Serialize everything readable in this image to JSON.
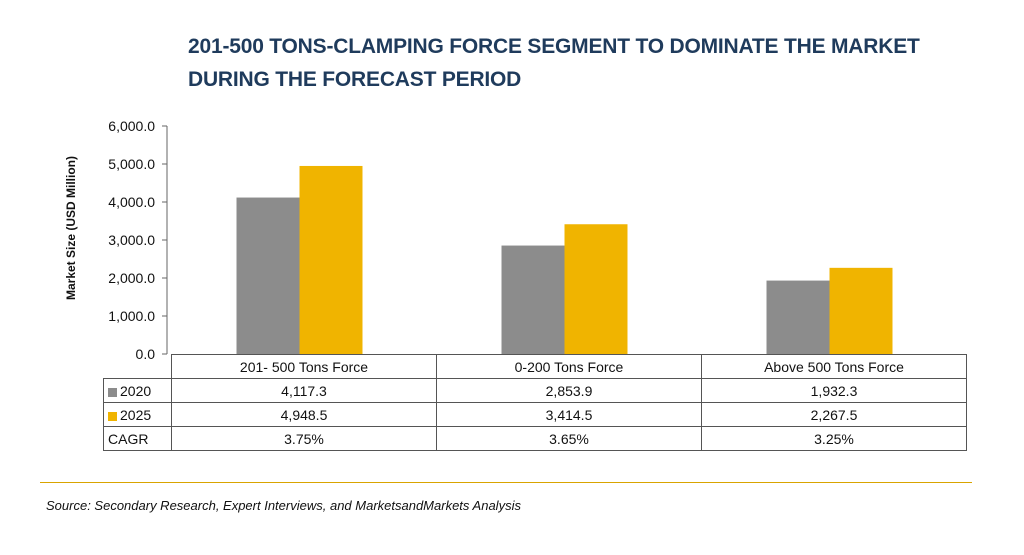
{
  "title_lines": [
    "201-500 TONS-CLAMPING FORCE SEGMENT TO DOMINATE THE MARKET",
    "DURING THE FORECAST PERIOD"
  ],
  "source": "Source: Secondary Research, Expert Interviews, and MarketsandMarkets Analysis",
  "colors": {
    "2020": "#8c8c8c",
    "2025": "#f0b400",
    "title": "#1f3b5c",
    "rule": "#d9a400"
  },
  "chart_data": {
    "type": "bar",
    "title": "201-500 TONS-CLAMPING FORCE SEGMENT TO DOMINATE THE MARKET DURING THE FORECAST PERIOD",
    "ylabel": "Market Size (USD Million)",
    "xlabel": "",
    "ylim": [
      0,
      6000
    ],
    "yticks": [
      "0.0",
      "1,000.0",
      "2,000.0",
      "3,000.0",
      "4,000.0",
      "5,000.0",
      "6,000.0"
    ],
    "grid": false,
    "categories": [
      "201- 500 Tons Force",
      "0-200 Tons Force",
      "Above 500 Tons Force"
    ],
    "series": [
      {
        "name": "2020",
        "values": [
          4117.3,
          2853.9,
          1932.3
        ],
        "labels": [
          "4,117.3",
          "2,853.9",
          "1,932.3"
        ]
      },
      {
        "name": "2025",
        "values": [
          4948.5,
          3414.5,
          2267.5
        ],
        "labels": [
          "4,948.5",
          "3,414.5",
          "2,267.5"
        ]
      }
    ],
    "cagr_label": "CAGR",
    "cagr": [
      "3.75%",
      "3.65%",
      "3.25%"
    ]
  }
}
